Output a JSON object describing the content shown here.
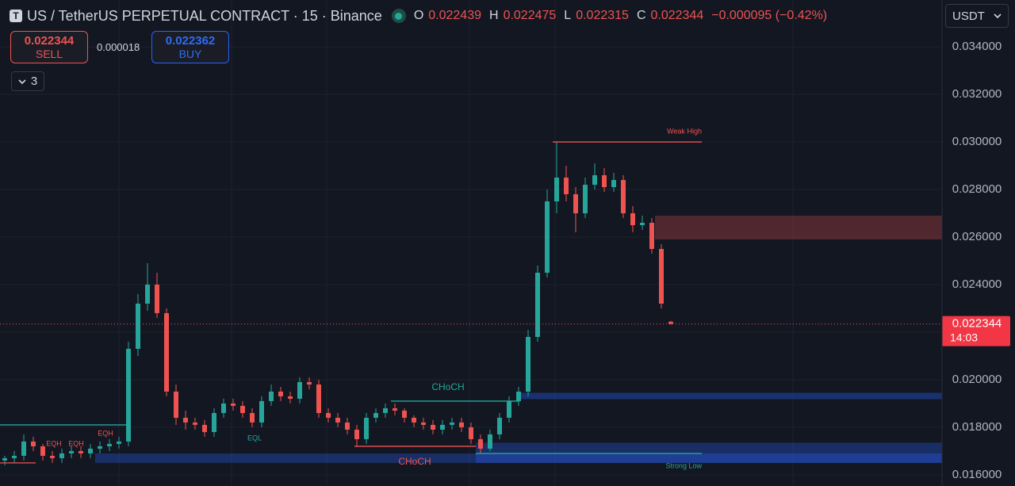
{
  "header": {
    "symbol": "US / TetherUS PERPETUAL CONTRACT · 15 · Binance",
    "ohlc": [
      {
        "key": "O",
        "value": 0.022439
      },
      {
        "key": "H",
        "value": 0.022475
      },
      {
        "key": "L",
        "value": 0.022315
      },
      {
        "key": "C",
        "value": 0.022344
      }
    ],
    "change": "−0.000095 (−0.42%)"
  },
  "trade": {
    "sell": {
      "price": 0.022344,
      "label": "SELL"
    },
    "spread": 1.8e-05,
    "buy": {
      "price": 0.022362,
      "label": "BUY"
    }
  },
  "indicators_toggle": 3,
  "currency": "USDT",
  "chart_data": {
    "type": "candlestick",
    "open": [
      0.0166,
      0.0167,
      0.0168,
      0.0174,
      0.0172,
      0.0168,
      0.0167,
      0.0169,
      0.017,
      0.0169,
      0.0171,
      0.0172,
      0.0173,
      0.0174,
      0.0213,
      0.0232,
      0.024,
      0.0228,
      0.0195,
      0.0184,
      0.0182,
      0.0181,
      0.0178,
      0.0186,
      0.019,
      0.0189,
      0.0186,
      0.0182,
      0.0191,
      0.0195,
      0.0193,
      0.0192,
      0.0199,
      0.0198,
      0.0186,
      0.0184,
      0.0182,
      0.0179,
      0.0175,
      0.0184,
      0.0186,
      0.0188,
      0.0187,
      0.0184,
      0.0182,
      0.0181,
      0.0179,
      0.0181,
      0.0182,
      0.018,
      0.0175,
      0.0171,
      0.0177,
      0.0184,
      0.0191,
      0.0195,
      0.0218,
      0.0245,
      0.0275,
      0.0285,
      0.0278,
      0.027,
      0.0282,
      0.0286,
      0.0281,
      0.0284,
      0.027,
      0.0265,
      0.0266,
      0.0255,
      0.022439
    ],
    "high": [
      0.0168,
      0.017,
      0.0177,
      0.0176,
      0.0173,
      0.017,
      0.0171,
      0.0172,
      0.0172,
      0.0173,
      0.0174,
      0.0175,
      0.0176,
      0.0216,
      0.0236,
      0.0249,
      0.0245,
      0.023,
      0.0198,
      0.0187,
      0.0184,
      0.0183,
      0.0188,
      0.0192,
      0.0192,
      0.0191,
      0.0188,
      0.0193,
      0.0198,
      0.0197,
      0.0195,
      0.0201,
      0.0201,
      0.02,
      0.0188,
      0.0186,
      0.0184,
      0.0181,
      0.0186,
      0.0188,
      0.019,
      0.019,
      0.0188,
      0.0185,
      0.0184,
      0.0183,
      0.0183,
      0.0184,
      0.0184,
      0.0182,
      0.0177,
      0.0179,
      0.0186,
      0.0193,
      0.0197,
      0.0221,
      0.0248,
      0.028,
      0.03,
      0.029,
      0.0281,
      0.0285,
      0.0291,
      0.0289,
      0.0287,
      0.0286,
      0.0273,
      0.0269,
      0.0268,
      0.0257,
      0.022475
    ],
    "low": [
      0.0164,
      0.0165,
      0.0166,
      0.017,
      0.0166,
      0.0165,
      0.0165,
      0.0167,
      0.0167,
      0.0167,
      0.0169,
      0.017,
      0.0171,
      0.0172,
      0.021,
      0.0229,
      0.0226,
      0.0193,
      0.0181,
      0.0179,
      0.0179,
      0.0176,
      0.0176,
      0.0184,
      0.0187,
      0.0184,
      0.018,
      0.018,
      0.0189,
      0.0191,
      0.019,
      0.019,
      0.0196,
      0.0184,
      0.0182,
      0.018,
      0.0177,
      0.0172,
      0.0173,
      0.0182,
      0.0184,
      0.0185,
      0.0182,
      0.018,
      0.0179,
      0.0177,
      0.0177,
      0.0179,
      0.0178,
      0.0173,
      0.0169,
      0.017,
      0.0175,
      0.0182,
      0.0189,
      0.0193,
      0.0216,
      0.0243,
      0.027,
      0.0275,
      0.0262,
      0.0268,
      0.028,
      0.0279,
      0.0279,
      0.0268,
      0.0262,
      0.0263,
      0.0253,
      0.023,
      0.022315
    ],
    "close": [
      0.0167,
      0.0168,
      0.0174,
      0.0172,
      0.0168,
      0.0167,
      0.0169,
      0.017,
      0.0169,
      0.0171,
      0.0172,
      0.0173,
      0.0174,
      0.0213,
      0.0232,
      0.024,
      0.0228,
      0.0195,
      0.0184,
      0.0182,
      0.0181,
      0.0178,
      0.0186,
      0.019,
      0.0189,
      0.0186,
      0.0182,
      0.0191,
      0.0195,
      0.0193,
      0.0192,
      0.0199,
      0.0198,
      0.0186,
      0.0184,
      0.0182,
      0.0179,
      0.0175,
      0.0184,
      0.0186,
      0.0188,
      0.0187,
      0.0184,
      0.0182,
      0.0181,
      0.0179,
      0.0181,
      0.0182,
      0.018,
      0.0175,
      0.0171,
      0.0177,
      0.0184,
      0.0191,
      0.0195,
      0.0218,
      0.0245,
      0.0275,
      0.0285,
      0.0278,
      0.027,
      0.0282,
      0.0286,
      0.0281,
      0.0284,
      0.027,
      0.0265,
      0.0266,
      0.0255,
      0.0232,
      0.022344
    ],
    "up_color": "#26a69a",
    "down_color": "#ef5350",
    "xlim": [
      -0.5,
      98.5
    ],
    "ylim": [
      0.01553,
      0.03597
    ],
    "yticks": [
      {
        "value": 0.016,
        "label": "0.016000"
      },
      {
        "value": 0.018,
        "label": "0.018000"
      },
      {
        "value": 0.02,
        "label": "0.020000"
      },
      {
        "value": 0.022,
        "label": "0.022000"
      },
      {
        "value": 0.024,
        "label": "0.024000"
      },
      {
        "value": 0.026,
        "label": "0.026000"
      },
      {
        "value": 0.028,
        "label": "0.028000"
      },
      {
        "value": 0.03,
        "label": "0.030000"
      },
      {
        "value": 0.032,
        "label": "0.032000"
      },
      {
        "value": 0.034,
        "label": "0.034000"
      }
    ],
    "grid": true,
    "last_price": 0.022344,
    "countdown": "14:03",
    "zones": [
      {
        "low": 0.0259,
        "high": 0.0269,
        "color": "rgba(239,83,80,0.28)"
      },
      {
        "low": 0.01918,
        "high": 0.01945,
        "color": "rgba(41,98,255,0.35)"
      },
      {
        "low": 0.0165,
        "high": 0.01735,
        "color": "rgba(41,98,255,0.3)"
      },
      {
        "low": 0.0165,
        "high": 0.0169,
        "color": "rgba(41,98,255,0.3)"
      }
    ],
    "levels": [
      {
        "label": "Weak High",
        "value": 0.03,
        "color": "#ef5350"
      },
      {
        "label": "CHoCH",
        "value": 0.0191,
        "color": "#26a69a"
      },
      {
        "label": "CHoCH",
        "value": 0.0172,
        "color": "#ef5350"
      },
      {
        "label": "Strong Low",
        "value": 0.0169,
        "color": "#26a69a"
      },
      {
        "value": 0.0181,
        "color": "#26a69a"
      },
      {
        "value": 0.0165,
        "color": "#ef5350"
      }
    ],
    "annotations": [
      {
        "text": "EQH",
        "color": "#ef5350"
      },
      {
        "text": "EQH",
        "color": "#ef5350"
      },
      {
        "text": "EQH",
        "color": "#ef5350"
      },
      {
        "text": "EQL",
        "color": "#26a69a"
      }
    ]
  }
}
